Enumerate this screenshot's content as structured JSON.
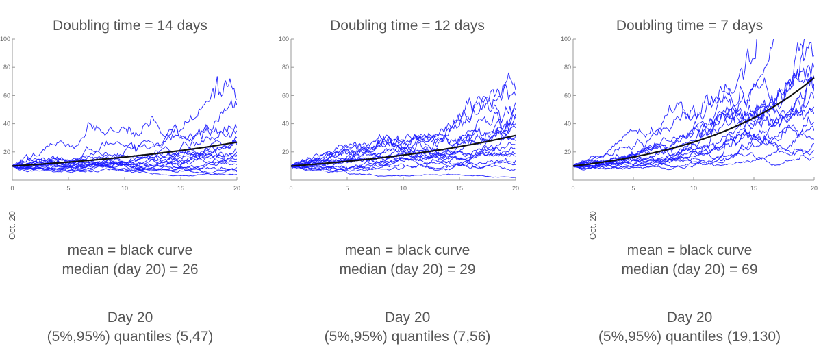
{
  "chart_data": [
    {
      "type": "line",
      "title": "Doubling time = 14 days",
      "x_axis_label": "Oct. 20",
      "xlim": [
        0,
        20
      ],
      "ylim": [
        0,
        100
      ],
      "x_ticks": [
        0,
        5,
        10,
        15,
        20
      ],
      "y_ticks": [
        20,
        40,
        60,
        80,
        100
      ],
      "grid": false,
      "colors": {
        "paths": "#1a1aff",
        "mean": "#111111"
      },
      "mean_curve": {
        "x": [
          0,
          5,
          10,
          15,
          20
        ],
        "y": [
          10,
          12.8,
          16.4,
          21,
          26.9
        ]
      },
      "endpoints_day20": [
        57,
        53,
        37,
        35,
        30,
        27,
        25,
        22,
        20,
        18,
        17,
        15,
        13,
        11,
        9,
        7,
        6,
        4
      ],
      "mean_label": "mean = black curve",
      "median_label": "median (day 20) = 26",
      "day_label": "Day 20",
      "quantile_label": "(5%,95%) quantiles (5,47)"
    },
    {
      "type": "line",
      "title": "Doubling time = 12 days",
      "x_axis_label": "",
      "xlim": [
        0,
        20
      ],
      "ylim": [
        0,
        100
      ],
      "x_ticks": [
        0,
        5,
        10,
        15,
        20
      ],
      "y_ticks": [
        20,
        40,
        60,
        80,
        100
      ],
      "grid": false,
      "colors": {
        "paths": "#1a1aff",
        "mean": "#111111"
      },
      "mean_curve": {
        "x": [
          0,
          5,
          10,
          15,
          20
        ],
        "y": [
          10,
          13.3,
          17.8,
          23.8,
          31.7
        ]
      },
      "endpoints_day20": [
        64,
        60,
        55,
        50,
        47,
        44,
        40,
        37,
        31,
        28,
        25,
        22,
        19,
        17,
        14,
        11,
        8,
        2
      ],
      "mean_label": "mean = black curve",
      "median_label": "median (day 20) = 29",
      "day_label": "Day 20",
      "quantile_label": "(5%,95%) quantiles (7,56)"
    },
    {
      "type": "line",
      "title": "Doubling time = 7 days",
      "x_axis_label": "Oct. 20",
      "xlim": [
        0,
        20
      ],
      "ylim": [
        0,
        100
      ],
      "x_ticks": [
        0,
        5,
        10,
        15,
        20
      ],
      "y_ticks": [
        20,
        40,
        60,
        80,
        100
      ],
      "grid": false,
      "colors": {
        "paths": "#1a1aff",
        "mean": "#111111"
      },
      "mean_curve": {
        "x": [
          0,
          5,
          10,
          15,
          20
        ],
        "y": [
          10,
          16.4,
          26.9,
          44.2,
          72.6
        ]
      },
      "endpoints_day20": [
        130,
        115,
        100,
        88,
        80,
        74,
        68,
        63,
        58,
        52,
        47,
        41,
        35,
        29,
        26,
        21,
        16
      ],
      "mean_label": "mean = black curve",
      "median_label": "median (day 20) = 69",
      "day_label": "Day 20",
      "quantile_label": "(5%,95%) quantiles (19,130)"
    }
  ]
}
